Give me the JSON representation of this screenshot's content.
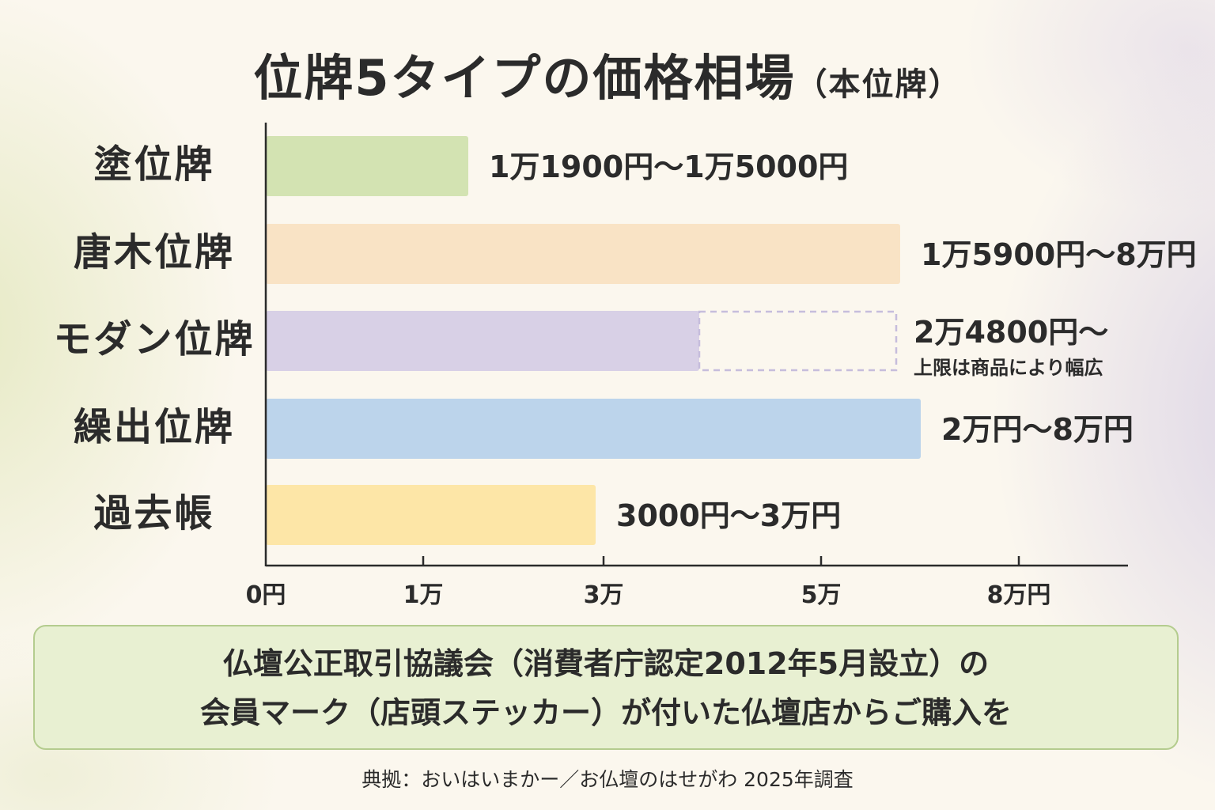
{
  "title": {
    "main": "位牌5タイプの価格相場",
    "sub": "（本位牌）"
  },
  "chart_data": {
    "type": "bar",
    "orientation": "horizontal",
    "categories": [
      "塗位牌",
      "唐木位牌",
      "モダン位牌",
      "繰出位牌",
      "過去帳"
    ],
    "values": [
      15000,
      80000,
      24800,
      80000,
      30000
    ],
    "range_low": [
      11900,
      15900,
      24800,
      20000,
      3000
    ],
    "value_labels": [
      "1万1900円〜1万5000円",
      "1万5900円〜8万円",
      "2万4800円〜",
      "2万円〜8万円",
      "3000円〜3万円"
    ],
    "value_sublabels": [
      "",
      "",
      "上限は商品により幅広",
      "",
      ""
    ],
    "open_ended": [
      false,
      false,
      true,
      false,
      false
    ],
    "colors": [
      "#d3e3b2",
      "#f9e3c5",
      "#d8d0e6",
      "#bcd4eb",
      "#fde6a7"
    ],
    "x_ticks": [
      {
        "value": 0,
        "label": "0円"
      },
      {
        "value": 10000,
        "label": "1万"
      },
      {
        "value": 30000,
        "label": "3万"
      },
      {
        "value": 50000,
        "label": "5万"
      },
      {
        "value": 80000,
        "label": "8万円"
      }
    ],
    "legend": "none",
    "grid": false
  },
  "note": {
    "line1": "仏壇公正取引協議会（消費者庁認定2012年5月設立）の",
    "line2": "会員マーク（店頭ステッカー）が付いた仏壇店からご購入を"
  },
  "source": "典拠：おいはいまかー／お仏壇のはせがわ 2025年調査"
}
